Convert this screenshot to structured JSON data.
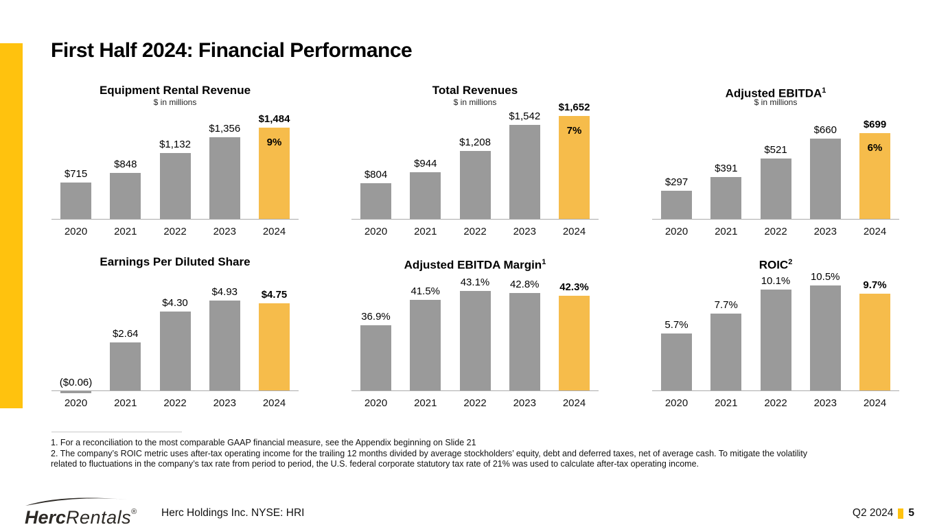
{
  "slide": {
    "title": "First Half 2024: Financial Performance",
    "accent_color": "#FFC20E",
    "bar_gray_color": "#9A9A9A",
    "bar_highlight_color": "#F6BC4B"
  },
  "chart_data": [
    {
      "type": "bar",
      "title": "Equipment Rental Revenue",
      "title_sup": "",
      "subtitle": "$ in millions",
      "categories": [
        "2020",
        "2021",
        "2022",
        "2023",
        "2024"
      ],
      "values": [
        715,
        848,
        1132,
        1356,
        1484
      ],
      "labels": [
        "$715",
        "$848",
        "$1,132",
        "$1,356",
        "$1,484"
      ],
      "growth_label": "9%",
      "highlight_index": 4,
      "ylim": [
        200,
        1750
      ],
      "grid": false,
      "legend": false
    },
    {
      "type": "bar",
      "title": "Total Revenues",
      "title_sup": "",
      "subtitle": "$ in millions",
      "categories": [
        "2020",
        "2021",
        "2022",
        "2023",
        "2024"
      ],
      "values": [
        804,
        944,
        1208,
        1542,
        1652
      ],
      "labels": [
        "$804",
        "$944",
        "$1,208",
        "$1,542",
        "$1,652"
      ],
      "growth_label": "7%",
      "highlight_index": 4,
      "ylim": [
        350,
        1740
      ],
      "grid": false,
      "legend": false
    },
    {
      "type": "bar",
      "title": "Adjusted EBITDA",
      "title_sup": "1",
      "subtitle": "$ in millions",
      "categories": [
        "2020",
        "2021",
        "2022",
        "2023",
        "2024"
      ],
      "values": [
        297,
        391,
        521,
        660,
        699
      ],
      "labels": [
        "$297",
        "$391",
        "$521",
        "$660",
        "$699"
      ],
      "growth_label": "6%",
      "highlight_index": 4,
      "ylim": [
        100,
        865
      ],
      "grid": false,
      "legend": false
    },
    {
      "type": "bar",
      "title": "Earnings Per Diluted Share",
      "title_sup": "",
      "subtitle": "",
      "categories": [
        "2020",
        "2021",
        "2022",
        "2023",
        "2024"
      ],
      "values": [
        -0.06,
        2.64,
        4.3,
        4.93,
        4.75
      ],
      "labels": [
        "($0.06)",
        "$2.64",
        "$4.30",
        "$4.93",
        "$4.75"
      ],
      "growth_label": "",
      "highlight_index": 4,
      "ylim": [
        0,
        6
      ],
      "grid": false,
      "legend": false
    },
    {
      "type": "bar",
      "title": "Adjusted EBITDA Margin",
      "title_sup": "1",
      "subtitle": "",
      "categories": [
        "2020",
        "2021",
        "2022",
        "2023",
        "2024"
      ],
      "values": [
        36.9,
        41.5,
        43.1,
        42.8,
        42.3
      ],
      "labels": [
        "36.9%",
        "41.5%",
        "43.1%",
        "42.8%",
        "42.3%"
      ],
      "growth_label": "",
      "highlight_index": 4,
      "ylim": [
        25,
        45
      ],
      "grid": false,
      "legend": false
    },
    {
      "type": "bar",
      "title": "ROIC",
      "title_sup": "2",
      "subtitle": "",
      "categories": [
        "2020",
        "2021",
        "2022",
        "2023",
        "2024"
      ],
      "values": [
        5.7,
        7.7,
        10.1,
        10.5,
        9.7
      ],
      "labels": [
        "5.7%",
        "7.7%",
        "10.1%",
        "10.5%",
        "9.7%"
      ],
      "growth_label": "",
      "highlight_index": 4,
      "ylim": [
        0,
        11
      ],
      "grid": false,
      "legend": false
    }
  ],
  "footnotes": {
    "items": [
      "1. For a reconciliation to the most comparable GAAP financial measure, see the Appendix beginning on Slide 21",
      "2. The company’s ROIC metric uses after-tax operating income for the trailing 12 months divided by average stockholders’ equity, debt and deferred taxes, net of average cash. To mitigate the volatility related to fluctuations in the company’s tax rate from period to period, the U.S. federal corporate statutory tax rate of 21% was used to calculate after-tax operating income."
    ]
  },
  "footer": {
    "logo_herc": "Herc",
    "logo_rentals": "Rentals",
    "logo_reg": "®",
    "company_line": "Herc Holdings Inc.  NYSE: HRI",
    "period": "Q2 2024",
    "page_number": "5"
  }
}
